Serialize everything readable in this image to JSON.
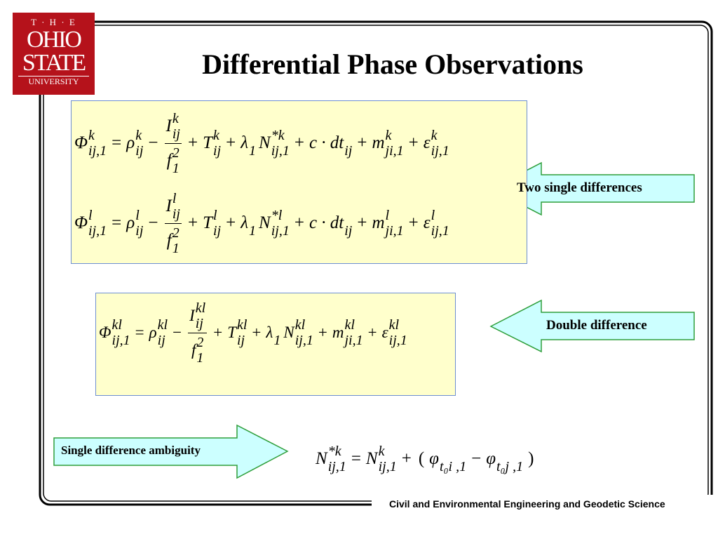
{
  "logo": {
    "lines": [
      "T · H · E",
      "OHIO",
      "STATE",
      "UNIVERSITY"
    ]
  },
  "title": "Differential Phase Observations",
  "equations": [
    {
      "terms": [
        {
          "base": "Φ",
          "sup": "k",
          "sub": "ij,1"
        },
        {
          "base": "="
        },
        {
          "base": "ρ",
          "sup": "k",
          "sub": "ij"
        },
        {
          "base": "−"
        },
        {
          "num": {
            "base": "I",
            "sup": "k",
            "sub": "ij"
          },
          "den": {
            "base": "f",
            "sup": "2",
            "sub": "1"
          }
        },
        {
          "base": "+"
        },
        {
          "base": "T",
          "sup": "k",
          "sub": "ij"
        },
        {
          "base": "+"
        },
        {
          "base": "λ",
          "sub": "1"
        },
        {
          "base": "N",
          "sup": "*k",
          "sub": "ij,1"
        },
        {
          "base": "+"
        },
        {
          "base": "c · dt",
          "sub": "ij"
        },
        {
          "base": "+"
        },
        {
          "base": "m",
          "sup": "k",
          "sub": "ji,1"
        },
        {
          "base": "+"
        },
        {
          "base": "ε",
          "sup": "k",
          "sub": "ij,1"
        }
      ]
    },
    {
      "terms": [
        {
          "base": "Φ",
          "sup": "l",
          "sub": "ij,1"
        },
        {
          "base": "="
        },
        {
          "base": "ρ",
          "sup": "l",
          "sub": "ij"
        },
        {
          "base": "−"
        },
        {
          "num": {
            "base": "I",
            "sup": "l",
            "sub": "ij"
          },
          "den": {
            "base": "f",
            "sup": "2",
            "sub": "1"
          }
        },
        {
          "base": "+"
        },
        {
          "base": "T",
          "sup": "l",
          "sub": "ij"
        },
        {
          "base": "+"
        },
        {
          "base": "λ",
          "sub": "1"
        },
        {
          "base": "N",
          "sup": "*l",
          "sub": "ij,1"
        },
        {
          "base": "+"
        },
        {
          "base": "c · dt",
          "sub": "ij"
        },
        {
          "base": "+"
        },
        {
          "base": "m",
          "sup": "l",
          "sub": "ji,1"
        },
        {
          "base": "+"
        },
        {
          "base": "ε",
          "sup": "l",
          "sub": "ij,1"
        }
      ]
    },
    {
      "terms": [
        {
          "base": "Φ",
          "sup": "kl",
          "sub": "ij,1"
        },
        {
          "base": "="
        },
        {
          "base": "ρ",
          "sup": "kl",
          "sub": "ij"
        },
        {
          "base": "−"
        },
        {
          "num": {
            "base": "I",
            "sup": "kl",
            "sub": "ij"
          },
          "den": {
            "base": "f",
            "sup": "2",
            "sub": "1"
          }
        },
        {
          "base": "+"
        },
        {
          "base": "T",
          "sup": "kl",
          "sub": "ij"
        },
        {
          "base": "+"
        },
        {
          "base": "λ",
          "sub": "1"
        },
        {
          "base": "N",
          "sup": "kl",
          "sub": "ij,1"
        },
        {
          "base": "+"
        },
        {
          "base": "m",
          "sup": "kl",
          "sub": "ji,1"
        },
        {
          "base": "+"
        },
        {
          "base": "ε",
          "sup": "kl",
          "sub": "ij,1"
        }
      ]
    },
    {
      "terms": [
        {
          "base": "N",
          "sup": "*k",
          "sub": "ij,1"
        },
        {
          "base": "="
        },
        {
          "base": "N",
          "sup": "k",
          "sub": "ij,1"
        },
        {
          "base": "+"
        },
        {
          "base": "("
        },
        {
          "base": "φ",
          "sub": "t₀i ,1"
        },
        {
          "base": "−"
        },
        {
          "base": "φ",
          "sub": "t₀j ,1"
        },
        {
          "base": ")"
        }
      ]
    }
  ],
  "callouts": [
    "Two single differences",
    "Double difference",
    "Single difference ambiguity"
  ],
  "footer": "Civil and Environmental Engineering and Geodetic Science"
}
